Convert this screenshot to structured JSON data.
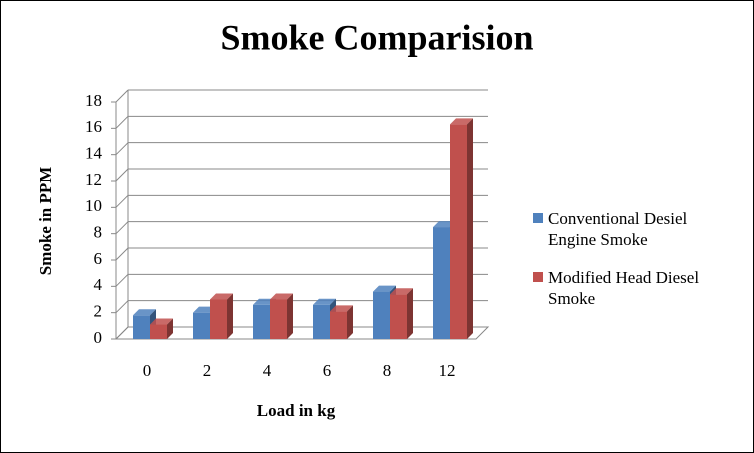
{
  "chart_data": {
    "type": "bar3d",
    "title": "Smoke Comparision",
    "y_label": "Smoke in PPM",
    "x_label": "Load in kg",
    "categories": [
      "0",
      "2",
      "4",
      "6",
      "8",
      "12"
    ],
    "series": [
      {
        "name": "Conventional Desiel Engine Smoke",
        "color": "#4f81bd",
        "values": [
          1.8,
          2.0,
          2.6,
          2.6,
          3.6,
          8.5
        ]
      },
      {
        "name": "Modified Head Diesel Smoke",
        "color": "#c0504d",
        "values": [
          1.1,
          3.0,
          3.0,
          2.1,
          3.4,
          16.3
        ]
      }
    ],
    "ylim": [
      0,
      18
    ],
    "yticks": [
      0,
      2,
      4,
      6,
      8,
      10,
      12,
      14,
      16,
      18
    ],
    "grid": true
  }
}
